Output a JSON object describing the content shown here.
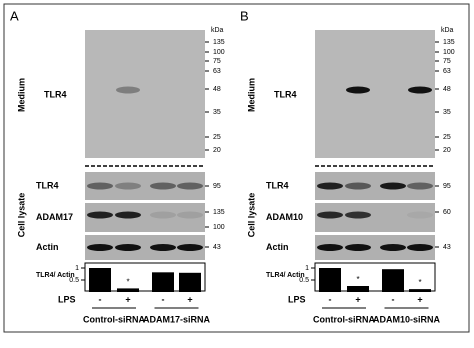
{
  "panels": [
    {
      "label": "A",
      "kda_label": "kDa",
      "medium_label": "Medium",
      "medium_blot_label": "TLR4",
      "medium_markers": [
        135,
        100,
        75,
        63,
        48,
        35,
        25,
        20
      ],
      "cell_lysate_label": "Cell lysate",
      "lysate_rows": [
        {
          "label": "TLR4",
          "markers": [
            95
          ]
        },
        {
          "label": "ADAM17",
          "markers": [
            135,
            100
          ]
        },
        {
          "label": "Actin",
          "markers": [
            43
          ]
        }
      ],
      "quant": {
        "ylabel": "TLR4/ Actin",
        "yticks": [
          1,
          0.5
        ],
        "values": [
          1,
          0.15,
          0.82,
          0.8
        ],
        "significance": [
          null,
          "*",
          null,
          null
        ]
      },
      "lps_label": "LPS",
      "lps": [
        "-",
        "+",
        "-",
        "+"
      ],
      "groups": [
        "Control-siRNA",
        "ADAM17-siRNA"
      ]
    },
    {
      "label": "B",
      "kda_label": "kDa",
      "medium_label": "Medium",
      "medium_blot_label": "TLR4",
      "medium_markers": [
        135,
        100,
        75,
        63,
        48,
        35,
        25,
        20
      ],
      "cell_lysate_label": "Cell lysate",
      "lysate_rows": [
        {
          "label": "TLR4",
          "markers": [
            95
          ]
        },
        {
          "label": "ADAM10",
          "markers": [
            60
          ]
        },
        {
          "label": "Actin",
          "markers": [
            43
          ]
        }
      ],
      "quant": {
        "ylabel": "TLR4/ Actin",
        "yticks": [
          1,
          0.5
        ],
        "values": [
          1,
          0.25,
          0.95,
          0.12
        ],
        "significance": [
          null,
          "*",
          null,
          "*"
        ]
      },
      "lps_label": "LPS",
      "lps": [
        "-",
        "+",
        "-",
        "+"
      ],
      "groups": [
        "Control-siRNA",
        "ADAM10-siRNA"
      ]
    }
  ]
}
